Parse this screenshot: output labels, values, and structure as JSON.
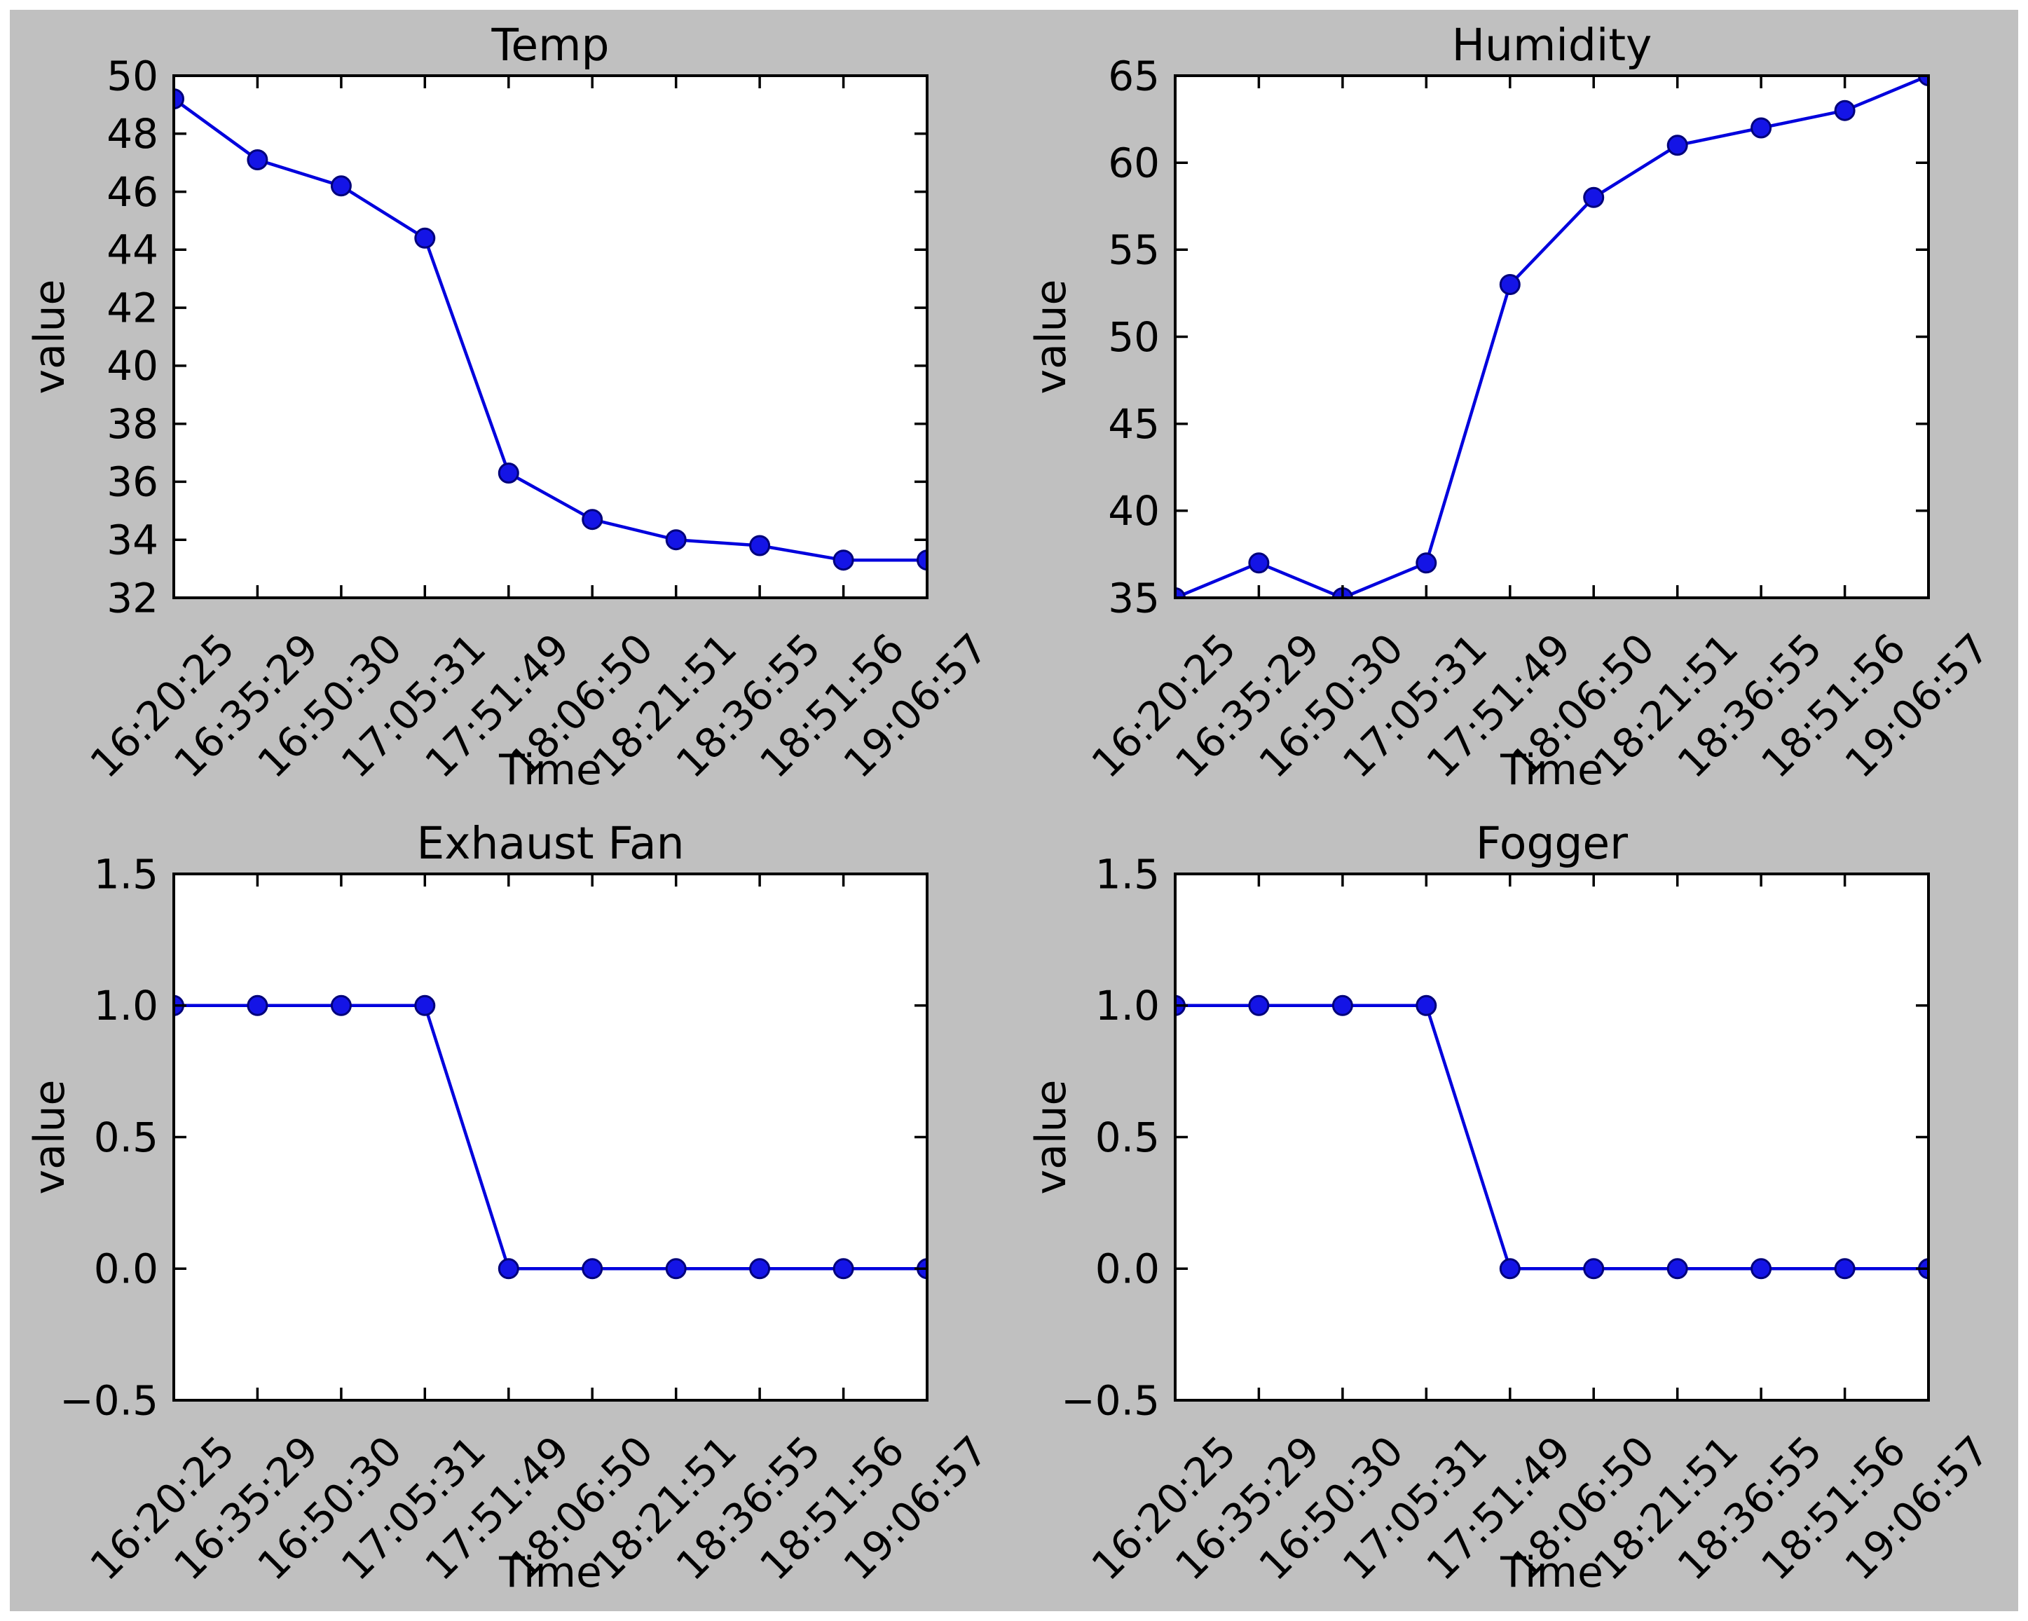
{
  "figure": {
    "background_color": "#c0c0c0",
    "outer_border_color": "#ffffff",
    "plot_background": "#ffffff",
    "spine_color": "#000000",
    "text_color": "#000000",
    "line_color": "#0000dd",
    "marker_face_color": "#1414e6",
    "marker_edge_color": "#00007a",
    "x_categories": [
      "16:20:25",
      "16:35:29",
      "16:50:30",
      "17:05:31",
      "17:51:49",
      "18:06:50",
      "18:21:51",
      "18:36:55",
      "18:51:56",
      "19:06:57"
    ]
  },
  "chart_data": [
    {
      "type": "line",
      "title": "Temp",
      "xlabel": "Time",
      "ylabel": "value",
      "x": [
        "16:20:25",
        "16:35:29",
        "16:50:30",
        "17:05:31",
        "17:51:49",
        "18:06:50",
        "18:21:51",
        "18:36:55",
        "18:51:56",
        "19:06:57"
      ],
      "values": [
        49.2,
        47.1,
        46.2,
        44.4,
        36.3,
        34.7,
        34.0,
        33.8,
        33.3,
        33.3
      ],
      "ylim": [
        32,
        50
      ],
      "yticks": [
        32,
        34,
        36,
        38,
        40,
        42,
        44,
        46,
        48,
        50
      ],
      "ytick_labels": [
        "32",
        "34",
        "36",
        "38",
        "40",
        "42",
        "44",
        "46",
        "48",
        "50"
      ],
      "grid": false,
      "legend": false,
      "marker": "circle",
      "line_style": "solid"
    },
    {
      "type": "line",
      "title": "Humidity",
      "xlabel": "Time",
      "ylabel": "value",
      "x": [
        "16:20:25",
        "16:35:29",
        "16:50:30",
        "17:05:31",
        "17:51:49",
        "18:06:50",
        "18:21:51",
        "18:36:55",
        "18:51:56",
        "19:06:57"
      ],
      "values": [
        35,
        37,
        35,
        37,
        53,
        58,
        61,
        62,
        63,
        65
      ],
      "ylim": [
        35,
        65
      ],
      "yticks": [
        35,
        40,
        45,
        50,
        55,
        60,
        65
      ],
      "ytick_labels": [
        "35",
        "40",
        "45",
        "50",
        "55",
        "60",
        "65"
      ],
      "grid": false,
      "legend": false,
      "marker": "circle",
      "line_style": "solid"
    },
    {
      "type": "line",
      "title": "Exhaust Fan",
      "xlabel": "Time",
      "ylabel": "value",
      "x": [
        "16:20:25",
        "16:35:29",
        "16:50:30",
        "17:05:31",
        "17:51:49",
        "18:06:50",
        "18:21:51",
        "18:36:55",
        "18:51:56",
        "19:06:57"
      ],
      "values": [
        1,
        1,
        1,
        1,
        0,
        0,
        0,
        0,
        0,
        0
      ],
      "ylim": [
        -0.5,
        1.5
      ],
      "yticks": [
        -0.5,
        0.0,
        0.5,
        1.0,
        1.5
      ],
      "ytick_labels": [
        "−0.5",
        "0.0",
        "0.5",
        "1.0",
        "1.5"
      ],
      "grid": false,
      "legend": false,
      "marker": "circle",
      "line_style": "solid"
    },
    {
      "type": "line",
      "title": "Fogger",
      "xlabel": "Time",
      "ylabel": "value",
      "x": [
        "16:20:25",
        "16:35:29",
        "16:50:30",
        "17:05:31",
        "17:51:49",
        "18:06:50",
        "18:21:51",
        "18:36:55",
        "18:51:56",
        "19:06:57"
      ],
      "values": [
        1,
        1,
        1,
        1,
        0,
        0,
        0,
        0,
        0,
        0
      ],
      "ylim": [
        -0.5,
        1.5
      ],
      "yticks": [
        -0.5,
        0.0,
        0.5,
        1.0,
        1.5
      ],
      "ytick_labels": [
        "−0.5",
        "0.0",
        "0.5",
        "1.0",
        "1.5"
      ],
      "grid": false,
      "legend": false,
      "marker": "circle",
      "line_style": "solid"
    }
  ]
}
